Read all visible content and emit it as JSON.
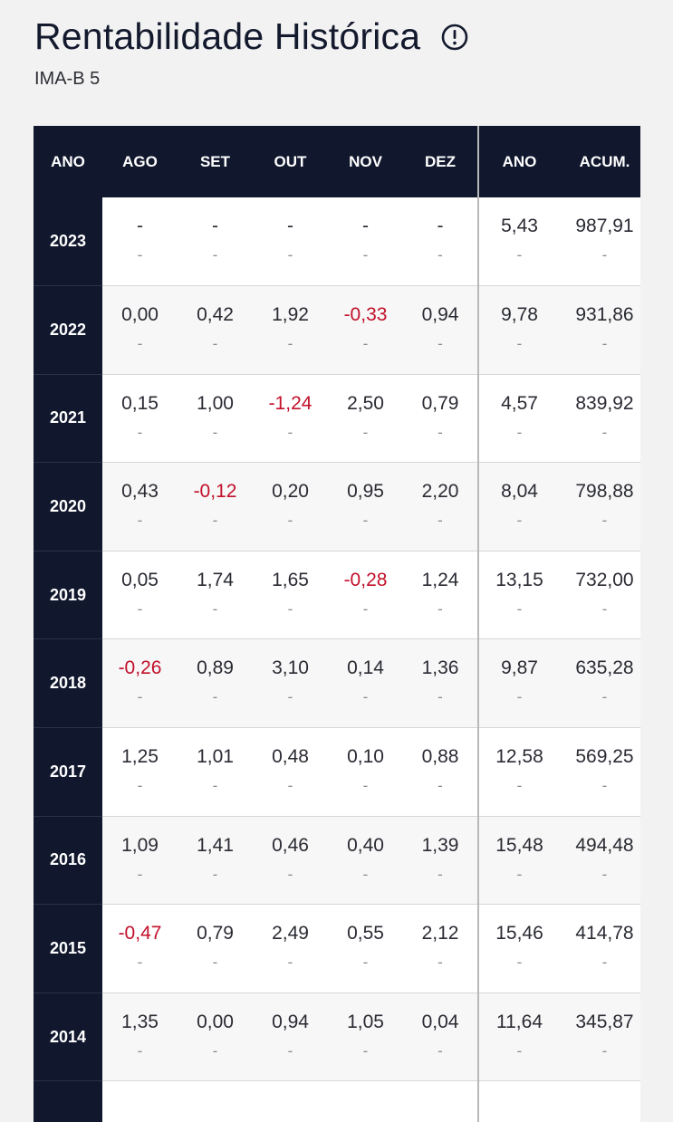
{
  "header": {
    "title": "Rentabilidade Histórica",
    "subtitle": "IMA-B 5",
    "info_icon": "info-circle-icon"
  },
  "table": {
    "columns": [
      "ANO",
      "AGO",
      "SET",
      "OUT",
      "NOV",
      "DEZ",
      "ANO",
      "ACUM."
    ],
    "negative_color": "#c2102a",
    "header_bg": "#11182e",
    "rows": [
      {
        "year": "2023",
        "values": [
          "-",
          "-",
          "-",
          "-",
          "-",
          "5,43",
          "987,91"
        ],
        "sub": [
          "-",
          "-",
          "-",
          "-",
          "-",
          "-",
          "-"
        ]
      },
      {
        "year": "2022",
        "values": [
          "0,00",
          "0,42",
          "1,92",
          "-0,33",
          "0,94",
          "9,78",
          "931,86"
        ],
        "sub": [
          "-",
          "-",
          "-",
          "-",
          "-",
          "-",
          "-"
        ]
      },
      {
        "year": "2021",
        "values": [
          "0,15",
          "1,00",
          "-1,24",
          "2,50",
          "0,79",
          "4,57",
          "839,92"
        ],
        "sub": [
          "-",
          "-",
          "-",
          "-",
          "-",
          "-",
          "-"
        ]
      },
      {
        "year": "2020",
        "values": [
          "0,43",
          "-0,12",
          "0,20",
          "0,95",
          "2,20",
          "8,04",
          "798,88"
        ],
        "sub": [
          "-",
          "-",
          "-",
          "-",
          "-",
          "-",
          "-"
        ]
      },
      {
        "year": "2019",
        "values": [
          "0,05",
          "1,74",
          "1,65",
          "-0,28",
          "1,24",
          "13,15",
          "732,00"
        ],
        "sub": [
          "-",
          "-",
          "-",
          "-",
          "-",
          "-",
          "-"
        ]
      },
      {
        "year": "2018",
        "values": [
          "-0,26",
          "0,89",
          "3,10",
          "0,14",
          "1,36",
          "9,87",
          "635,28"
        ],
        "sub": [
          "-",
          "-",
          "-",
          "-",
          "-",
          "-",
          "-"
        ]
      },
      {
        "year": "2017",
        "values": [
          "1,25",
          "1,01",
          "0,48",
          "0,10",
          "0,88",
          "12,58",
          "569,25"
        ],
        "sub": [
          "-",
          "-",
          "-",
          "-",
          "-",
          "-",
          "-"
        ]
      },
      {
        "year": "2016",
        "values": [
          "1,09",
          "1,41",
          "0,46",
          "0,40",
          "1,39",
          "15,48",
          "494,48"
        ],
        "sub": [
          "-",
          "-",
          "-",
          "-",
          "-",
          "-",
          "-"
        ]
      },
      {
        "year": "2015",
        "values": [
          "-0,47",
          "0,79",
          "2,49",
          "0,55",
          "2,12",
          "15,46",
          "414,78"
        ],
        "sub": [
          "-",
          "-",
          "-",
          "-",
          "-",
          "-",
          "-"
        ]
      },
      {
        "year": "2014",
        "values": [
          "1,35",
          "0,00",
          "0,94",
          "1,05",
          "0,04",
          "11,64",
          "345,87"
        ],
        "sub": [
          "-",
          "-",
          "-",
          "-",
          "-",
          "-",
          "-"
        ]
      },
      {
        "year": "",
        "values": [
          "",
          "",
          "",
          "",
          "",
          "",
          ""
        ],
        "sub": [
          "",
          "",
          "",
          "",
          "",
          "",
          ""
        ]
      }
    ]
  }
}
